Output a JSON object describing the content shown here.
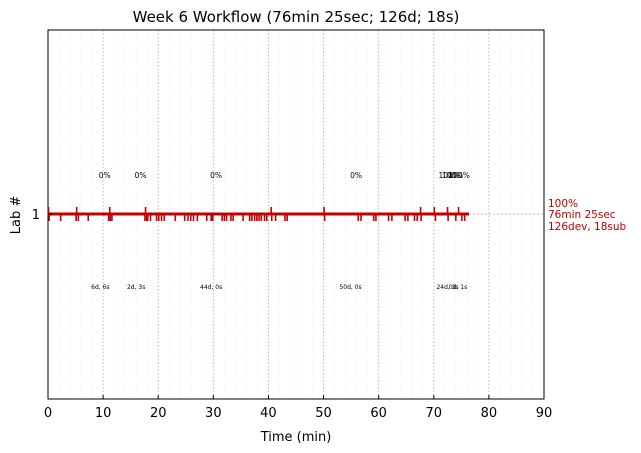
{
  "chart_data": {
    "type": "timeline",
    "title": "Week 6 Workflow (76min 25sec; 126d; 18s)",
    "xlabel": "Time (min)",
    "ylabel": "Lab #",
    "xlim": [
      0,
      90
    ],
    "xticks": [
      0,
      10,
      20,
      30,
      40,
      50,
      60,
      70,
      80,
      90
    ],
    "yticks": [
      "1"
    ],
    "grid": "dotted vertical",
    "line": {
      "lab": "1",
      "start": 0,
      "end": 76.4
    },
    "colors": {
      "line": "#c00000",
      "annotation": "#c00000",
      "grid": "#bbbbbb"
    },
    "summary": [
      "100%",
      "76min 25sec",
      "126dev, 18sub"
    ],
    "dev_ticks": [
      0.2,
      2.3,
      5.1,
      5.5,
      7.3,
      11,
      11.3,
      11.6,
      17.6,
      17.9,
      18.1,
      18.6,
      19.7,
      20.1,
      20.6,
      21.1,
      23.1,
      24.8,
      25.4,
      25.9,
      26.4,
      27.1,
      28.8,
      29.6,
      29.9,
      31.6,
      32,
      32.4,
      33.2,
      33.6,
      35.4,
      36.6,
      37,
      37.5,
      37.9,
      38.3,
      38.7,
      39.3,
      39.7,
      40.6,
      41.3,
      43,
      43.4,
      50.2,
      56.3,
      56.8,
      59.1,
      59.5,
      61.8,
      62.4,
      64.8,
      65.3,
      66.5,
      67,
      67.7,
      70.3,
      72.6,
      74,
      75.1,
      75.6
    ],
    "sub_ticks": [
      0.1,
      5.2,
      11.2,
      17.7,
      40.5,
      50.1,
      67.6,
      70.1,
      72.5,
      74.5
    ],
    "percent_labels": [
      {
        "x": 10.3,
        "text": "0%"
      },
      {
        "x": 16.8,
        "text": "0%"
      },
      {
        "x": 30.5,
        "text": "0%"
      },
      {
        "x": 55.9,
        "text": "0%"
      },
      {
        "x": 72.8,
        "text": "100%"
      },
      {
        "x": 73.4,
        "text": "100%"
      },
      {
        "x": 74.6,
        "text": "100%"
      }
    ],
    "duration_labels": [
      {
        "x": 9.5,
        "text": "6d, 6s"
      },
      {
        "x": 16,
        "text": "2d, 3s"
      },
      {
        "x": 29.6,
        "text": "44d, 0s"
      },
      {
        "x": 54.9,
        "text": "50d, 0s"
      },
      {
        "x": 72.5,
        "text": "24d, 3s"
      },
      {
        "x": 74.4,
        "text": "0d, 1s"
      }
    ]
  }
}
